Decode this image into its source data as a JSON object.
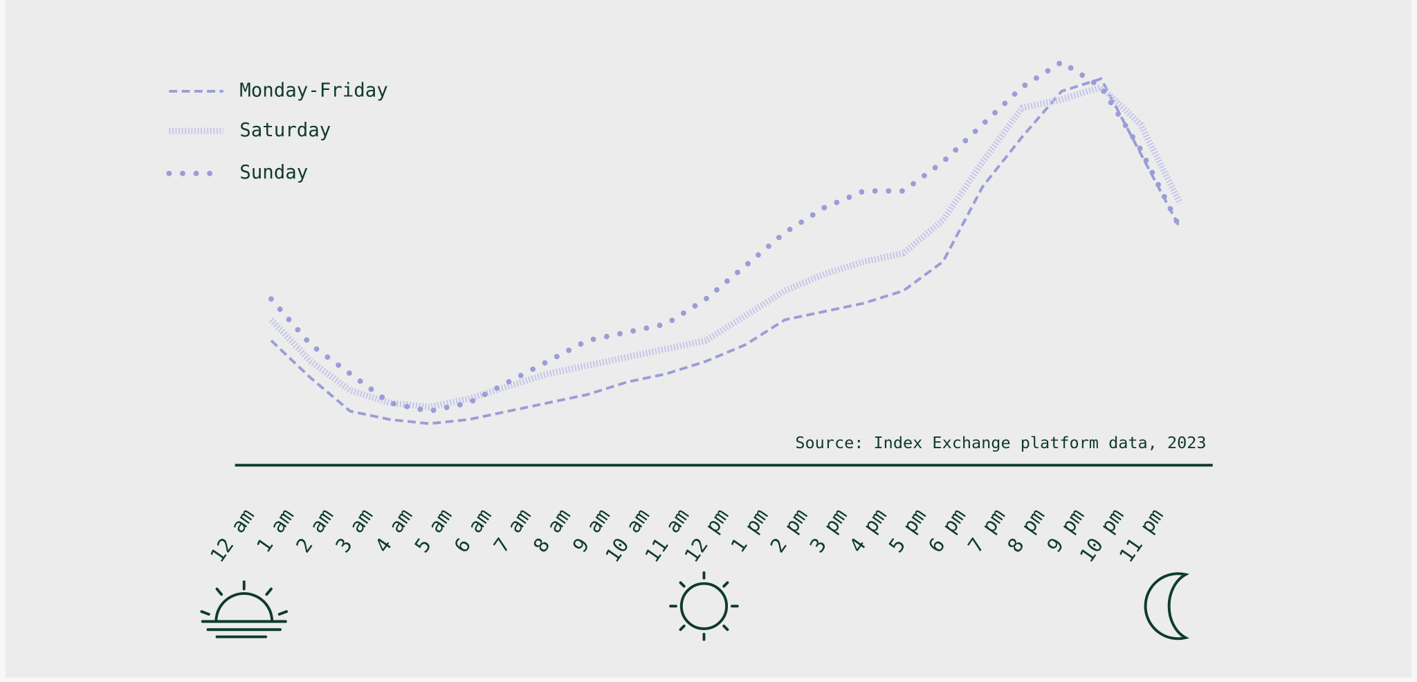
{
  "chart_data": {
    "type": "line",
    "source": "Source: Index Exchange platform data, 2023",
    "categories": [
      "12 am",
      "1 am",
      "2 am",
      "3 am",
      "4 am",
      "5 am",
      "6 am",
      "7 am",
      "8 am",
      "9 am",
      "10 am",
      "11 am",
      "12 pm",
      "1 pm",
      "2 pm",
      "3 pm",
      "4 pm",
      "5 pm",
      "6 pm",
      "7 pm",
      "8 pm",
      "9 pm",
      "10 pm",
      "11 pm"
    ],
    "ylim": [
      0,
      100
    ],
    "series": [
      {
        "name": "Monday-Friday",
        "color": "#9a9dd6",
        "style": "dashed",
        "values": [
          30,
          21,
          13,
          11,
          10,
          11,
          13,
          15,
          17,
          20,
          22,
          25,
          29,
          35,
          37,
          39,
          42,
          49,
          67,
          79,
          90,
          93,
          75,
          57
        ]
      },
      {
        "name": "Saturday",
        "color": "#c4c5ea",
        "style": "hatched",
        "values": [
          35,
          25,
          18,
          15,
          14,
          16,
          19,
          22,
          24,
          26,
          28,
          30,
          36,
          42,
          46,
          49,
          51,
          59,
          73,
          86,
          88,
          91,
          82,
          63
        ]
      },
      {
        "name": "Sunday",
        "color": "#9a9dd6",
        "style": "dotted",
        "values": [
          40,
          29,
          22,
          15,
          13,
          15,
          20,
          25,
          30,
          32,
          34,
          40,
          48,
          56,
          62,
          66,
          66,
          73,
          82,
          91,
          97,
          91,
          76,
          57
        ]
      }
    ]
  }
}
